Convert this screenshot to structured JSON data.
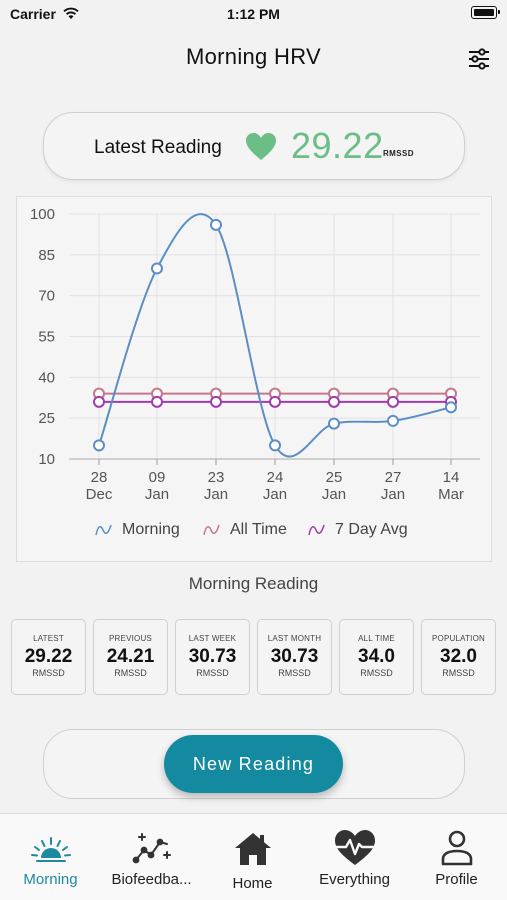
{
  "status_bar": {
    "carrier": "Carrier",
    "time": "1:12 PM"
  },
  "nav": {
    "title": "Morning HRV",
    "filter_icon": "sliders-icon"
  },
  "latest": {
    "label": "Latest Reading",
    "value": "29.22",
    "unit": "RMSSD",
    "icon": "heart-icon"
  },
  "chart_data": {
    "type": "line",
    "categories": [
      [
        "28",
        "Dec"
      ],
      [
        "09",
        "Jan"
      ],
      [
        "23",
        "Jan"
      ],
      [
        "24",
        "Jan"
      ],
      [
        "25",
        "Jan"
      ],
      [
        "27",
        "Jan"
      ],
      [
        "14",
        "Mar"
      ]
    ],
    "yticks": [
      "100",
      "85",
      "70",
      "55",
      "40",
      "25",
      "10"
    ],
    "ylim": [
      10,
      100
    ],
    "series": [
      {
        "name": "Morning",
        "values": [
          15,
          80,
          96,
          15,
          23,
          24,
          29
        ],
        "color": "#5b8ec4"
      },
      {
        "name": "All Time",
        "values": [
          34,
          34,
          34,
          34,
          34,
          34,
          34
        ],
        "color": "#c4788c"
      },
      {
        "name": "7 Day Avg",
        "values": [
          31,
          31,
          31,
          31,
          31,
          31,
          31
        ],
        "color": "#a03ab0"
      }
    ],
    "grid": true,
    "legend_position": "bottom"
  },
  "section_title": "Morning Reading",
  "stats": [
    {
      "label": "LATEST",
      "value": "29.22",
      "unit": "RMSSD"
    },
    {
      "label": "PREVIOUS",
      "value": "24.21",
      "unit": "RMSSD"
    },
    {
      "label": "LAST WEEK",
      "value": "30.73",
      "unit": "RMSSD"
    },
    {
      "label": "LAST MONTH",
      "value": "30.73",
      "unit": "RMSSD"
    },
    {
      "label": "ALL TIME",
      "value": "34.0",
      "unit": "RMSSD"
    },
    {
      "label": "POPULATION",
      "value": "32.0",
      "unit": "RMSSD"
    }
  ],
  "actions": {
    "new_reading": "New Reading"
  },
  "tabs": [
    {
      "label": "Morning",
      "icon": "sunrise-icon",
      "active": true
    },
    {
      "label": "Biofeedba...",
      "icon": "trend-sparkle-icon",
      "active": false
    },
    {
      "label": "Home",
      "icon": "home-icon",
      "active": false
    },
    {
      "label": "Everything",
      "icon": "heart-pulse-icon",
      "active": false
    },
    {
      "label": "Profile",
      "icon": "person-icon",
      "active": false
    }
  ],
  "colors": {
    "accent": "#148aa0",
    "latest_value": "#6bbe86"
  }
}
